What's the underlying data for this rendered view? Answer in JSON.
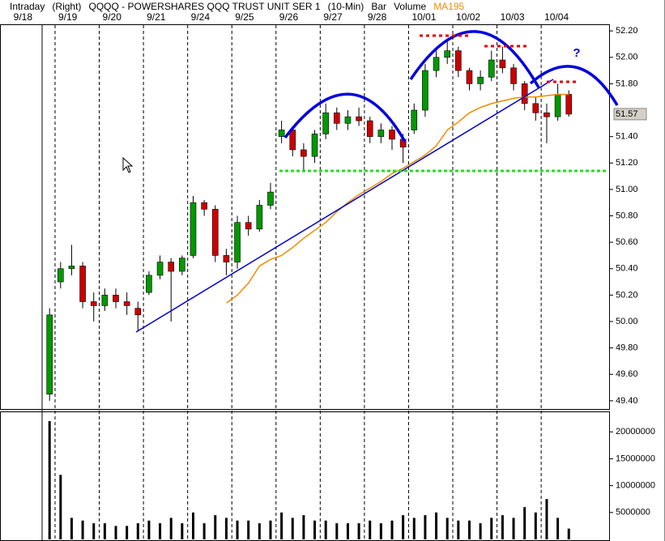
{
  "chart_data": [
    {
      "type": "candlestick",
      "header": [
        "Intraday",
        "(Right)",
        "QQQQ - POWERSHARES QQQ TRUST UNIT SER 1",
        "(10-Min)",
        "Bar",
        "Volume"
      ],
      "categories": [
        "9/18",
        "9/19",
        null,
        null,
        null,
        "9/20",
        null,
        null,
        null,
        "9/21",
        null,
        null,
        null,
        "9/24",
        null,
        null,
        null,
        "9/25",
        null,
        null,
        null,
        "9/26",
        null,
        null,
        null,
        "9/27",
        null,
        null,
        null,
        "9/28",
        null,
        null,
        null,
        "10/01",
        null,
        null,
        null,
        "10/02",
        null,
        null,
        null,
        "10/03",
        null,
        null,
        null,
        "10/04",
        null,
        null
      ],
      "open": [
        49.45,
        50.3,
        50.4,
        50.42,
        50.15,
        50.12,
        50.2,
        50.15,
        50.1,
        50.22,
        50.35,
        50.45,
        50.38,
        50.5,
        50.9,
        50.85,
        50.5,
        50.45,
        50.75,
        50.7,
        50.88,
        51.4,
        51.45,
        51.3,
        51.25,
        51.42,
        51.58,
        51.5,
        51.55,
        51.52,
        51.4,
        51.45,
        51.38,
        51.45,
        51.6,
        51.9,
        52.0,
        52.05,
        51.9,
        51.8,
        51.85,
        51.98,
        51.92,
        51.8,
        51.65,
        51.58,
        51.55,
        51.72
      ],
      "high": [
        50.1,
        50.45,
        50.58,
        50.45,
        50.22,
        50.25,
        50.25,
        50.22,
        50.15,
        50.38,
        50.5,
        50.48,
        50.5,
        50.95,
        50.92,
        50.88,
        50.55,
        50.8,
        50.8,
        50.92,
        51.05,
        51.52,
        51.48,
        51.35,
        51.45,
        51.65,
        51.62,
        51.6,
        51.62,
        51.55,
        51.5,
        51.48,
        51.42,
        51.65,
        51.95,
        52.05,
        52.12,
        52.08,
        51.92,
        51.9,
        52.05,
        52.08,
        51.95,
        51.82,
        51.7,
        51.65,
        51.8,
        51.75
      ],
      "low": [
        49.4,
        50.25,
        50.35,
        50.1,
        50.0,
        50.08,
        50.1,
        50.05,
        49.93,
        50.2,
        50.32,
        50.0,
        50.35,
        50.48,
        50.8,
        50.45,
        50.35,
        50.4,
        50.65,
        50.68,
        50.85,
        51.35,
        51.25,
        51.13,
        51.2,
        51.38,
        51.45,
        51.45,
        51.48,
        51.35,
        51.35,
        51.3,
        51.2,
        51.42,
        51.55,
        51.85,
        51.95,
        51.85,
        51.75,
        51.75,
        51.82,
        51.88,
        51.75,
        51.6,
        51.52,
        51.35,
        51.52,
        51.55
      ],
      "close": [
        50.05,
        50.4,
        50.42,
        50.15,
        50.12,
        50.2,
        50.15,
        50.12,
        50.05,
        50.35,
        50.45,
        50.38,
        50.48,
        50.9,
        50.85,
        50.5,
        50.45,
        50.75,
        50.7,
        50.88,
        50.98,
        51.45,
        51.3,
        51.25,
        51.42,
        51.58,
        51.5,
        51.55,
        51.52,
        51.4,
        51.45,
        51.38,
        51.32,
        51.6,
        51.9,
        52.0,
        52.05,
        51.9,
        51.8,
        51.85,
        51.98,
        51.92,
        51.8,
        51.65,
        51.58,
        51.55,
        51.72,
        51.57
      ],
      "up_color": "#009900",
      "down_color": "#cc0000",
      "series": [
        {
          "name": "MA195",
          "color": "#f08c00",
          "values": [
            null,
            null,
            null,
            null,
            null,
            null,
            null,
            null,
            null,
            null,
            null,
            null,
            null,
            null,
            null,
            null,
            50.14,
            50.2,
            50.29,
            50.42,
            50.47,
            50.5,
            50.56,
            50.63,
            50.69,
            50.75,
            50.83,
            50.9,
            50.96,
            51.01,
            51.06,
            51.12,
            51.16,
            51.21,
            51.26,
            51.33,
            51.45,
            51.51,
            51.58,
            51.62,
            51.65,
            51.67,
            51.69,
            51.7,
            51.7,
            51.71,
            51.72,
            51.72
          ]
        }
      ],
      "last_price": 51.57,
      "annotations": [
        "?"
      ],
      "ylim": [
        49.35,
        52.25
      ],
      "yticks": [
        {
          "value": 52.2,
          "label": "52.20"
        },
        {
          "value": 52,
          "label": "52.00"
        },
        {
          "value": 51.8,
          "label": "51.80"
        },
        {
          "value": 51.4,
          "label": "51.40"
        },
        {
          "value": 51.2,
          "label": "51.20"
        },
        {
          "value": 51,
          "label": "51.00"
        },
        {
          "value": 50.8,
          "label": "50.80"
        },
        {
          "value": 50.6,
          "label": "50.60"
        },
        {
          "value": 50.4,
          "label": "50.40"
        },
        {
          "value": 50.2,
          "label": "50.20"
        },
        {
          "value": 50,
          "label": "50.00"
        },
        {
          "value": 49.8,
          "label": "49.80"
        },
        {
          "value": 49.6,
          "label": "49.60"
        },
        {
          "value": 49.4,
          "label": "49.40"
        }
      ]
    },
    {
      "type": "bar",
      "values": [
        22000000,
        12000000,
        4000000,
        3500000,
        3000000,
        3000000,
        2500000,
        2500000,
        3000000,
        3500000,
        3000000,
        4000000,
        3000000,
        5000000,
        3000000,
        4500000,
        4000000,
        3500000,
        3500000,
        3000000,
        3500000,
        5000000,
        4000000,
        4500000,
        3500000,
        3500000,
        3000000,
        3000000,
        3000000,
        3500000,
        3000000,
        3500000,
        4500000,
        4000000,
        4500000,
        5000000,
        4000000,
        3500000,
        3500000,
        3000000,
        4000000,
        4500000,
        4000000,
        6000000,
        5000000,
        7500000,
        4000000,
        2000000
      ],
      "color": "#000000",
      "ylim": [
        0,
        23500000
      ],
      "yticks": [
        5000000,
        10000000,
        15000000,
        20000000
      ]
    }
  ]
}
